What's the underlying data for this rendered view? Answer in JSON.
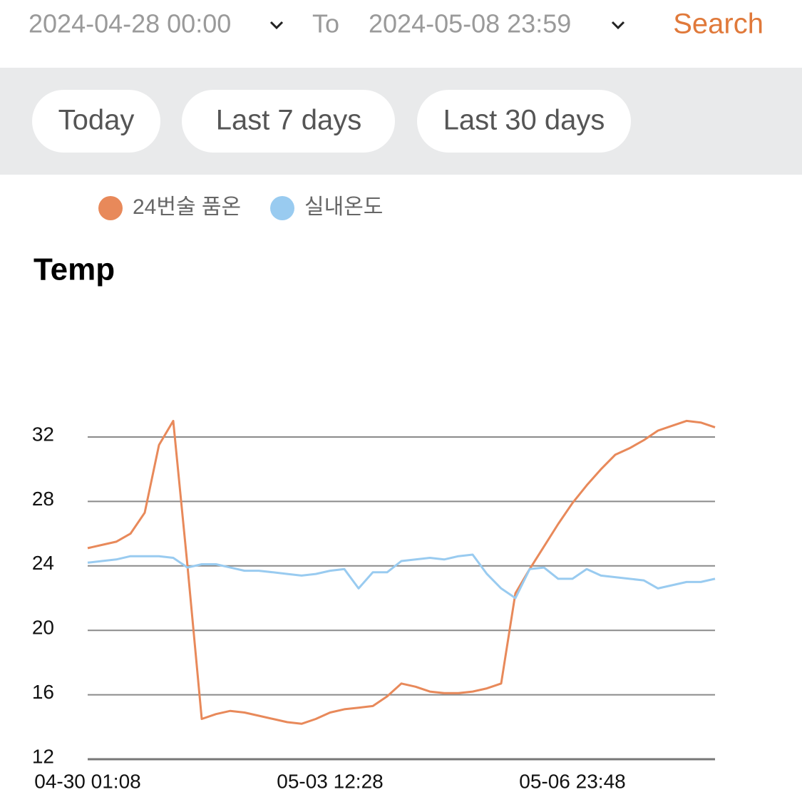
{
  "header": {
    "start": "2024-04-28 00:00",
    "to": "To",
    "end": "2024-05-08 23:59",
    "search": "Search"
  },
  "quick_ranges": [
    "Today",
    "Last 7 days",
    "Last 30 days"
  ],
  "chart_data": {
    "type": "line",
    "title": "Temp",
    "categories": [
      "04-30 01:08",
      null,
      null,
      null,
      null,
      null,
      null,
      null,
      null,
      null,
      null,
      null,
      null,
      null,
      null,
      null,
      null,
      "05-03 12:28",
      null,
      null,
      null,
      null,
      null,
      null,
      null,
      null,
      null,
      null,
      null,
      null,
      null,
      null,
      null,
      null,
      "05-06 23:48",
      null,
      null,
      null,
      null,
      null,
      null,
      null,
      null,
      null,
      null
    ],
    "series": [
      {
        "name": "24번술 품온",
        "color": "#e8895a",
        "values": [
          25.1,
          25.3,
          25.5,
          26.0,
          27.3,
          31.5,
          33.0,
          24.0,
          14.5,
          14.8,
          15.0,
          14.9,
          14.7,
          14.5,
          14.3,
          14.2,
          14.5,
          14.9,
          15.1,
          15.2,
          15.3,
          15.9,
          16.7,
          16.5,
          16.2,
          16.1,
          16.1,
          16.2,
          16.4,
          16.7,
          22.3,
          23.8,
          25.2,
          26.6,
          27.9,
          29.0,
          30.0,
          30.9,
          31.3,
          31.8,
          32.4,
          32.7,
          33.0,
          32.9,
          32.6
        ]
      },
      {
        "name": "실내온도",
        "color": "#99cbf0",
        "values": [
          24.2,
          24.3,
          24.4,
          24.6,
          24.6,
          24.6,
          24.5,
          23.9,
          24.1,
          24.1,
          23.9,
          23.7,
          23.7,
          23.6,
          23.5,
          23.4,
          23.5,
          23.7,
          23.8,
          22.6,
          23.6,
          23.6,
          24.3,
          24.4,
          24.5,
          24.4,
          24.6,
          24.7,
          23.5,
          22.6,
          22.0,
          23.8,
          23.9,
          23.2,
          23.2,
          23.8,
          23.4,
          23.3,
          23.2,
          23.1,
          22.6,
          22.8,
          23.0,
          23.0,
          23.2
        ]
      }
    ],
    "ylim": [
      12,
      32
    ],
    "yticks": [
      12,
      16,
      20,
      24,
      28,
      32
    ],
    "grid": true
  }
}
